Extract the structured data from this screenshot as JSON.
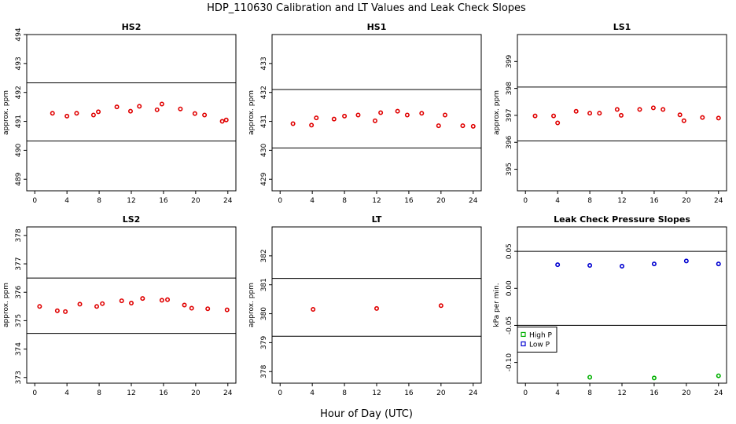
{
  "title": "HDP_110630  Calibration and LT Values and Leak Check Slopes",
  "xlabel": "Hour of Day (UTC)",
  "colors": {
    "red": "#e00000",
    "green": "#00b000",
    "blue": "#0000d0"
  },
  "chart_data": [
    {
      "type": "scatter",
      "title": "HS2",
      "ylabel": "approx. ppm",
      "xlim": [
        -1,
        25
      ],
      "ylim": [
        488.6,
        494
      ],
      "xticks": [
        0,
        4,
        8,
        12,
        16,
        20,
        24
      ],
      "yticks": [
        489,
        490,
        491,
        492,
        493,
        494
      ],
      "hlines": [
        490.32,
        492.33
      ],
      "series": [
        {
          "color": "red",
          "marker": "circle",
          "points": [
            [
              2.2,
              491.28
            ],
            [
              4,
              491.18
            ],
            [
              5.2,
              491.28
            ],
            [
              7.3,
              491.22
            ],
            [
              7.9,
              491.33
            ],
            [
              10.2,
              491.5
            ],
            [
              11.9,
              491.35
            ],
            [
              13,
              491.52
            ],
            [
              15.2,
              491.4
            ],
            [
              15.8,
              491.6
            ],
            [
              18.1,
              491.43
            ],
            [
              19.9,
              491.27
            ],
            [
              21.1,
              491.22
            ],
            [
              23.3,
              491
            ],
            [
              23.8,
              491.05
            ]
          ]
        }
      ]
    },
    {
      "type": "scatter",
      "title": "HS1",
      "ylabel": "approx. ppm",
      "xlim": [
        -1,
        25
      ],
      "ylim": [
        428.6,
        434
      ],
      "xticks": [
        0,
        4,
        8,
        12,
        16,
        20,
        24
      ],
      "yticks": [
        429,
        430,
        431,
        432,
        433
      ],
      "hlines": [
        430.08,
        432.1
      ],
      "series": [
        {
          "color": "red",
          "marker": "circle",
          "points": [
            [
              1.6,
              430.92
            ],
            [
              3.9,
              430.87
            ],
            [
              4.5,
              431.12
            ],
            [
              6.7,
              431.08
            ],
            [
              8,
              431.18
            ],
            [
              9.7,
              431.22
            ],
            [
              11.8,
              431.02
            ],
            [
              12.5,
              431.3
            ],
            [
              14.6,
              431.35
            ],
            [
              15.8,
              431.22
            ],
            [
              17.6,
              431.28
            ],
            [
              19.7,
              430.85
            ],
            [
              20.5,
              431.22
            ],
            [
              22.7,
              430.85
            ],
            [
              24,
              430.83
            ]
          ]
        }
      ]
    },
    {
      "type": "scatter",
      "title": "LS1",
      "ylabel": "approx. ppm",
      "xlim": [
        -1,
        25
      ],
      "ylim": [
        394.2,
        400
      ],
      "xticks": [
        0,
        4,
        8,
        12,
        16,
        20,
        24
      ],
      "yticks": [
        395,
        396,
        397,
        398,
        399
      ],
      "hlines": [
        396.05,
        398.05
      ],
      "series": [
        {
          "color": "red",
          "marker": "circle",
          "points": [
            [
              1.2,
              396.98
            ],
            [
              3.5,
              396.98
            ],
            [
              4,
              396.72
            ],
            [
              6.3,
              397.15
            ],
            [
              8,
              397.08
            ],
            [
              9.2,
              397.08
            ],
            [
              11.4,
              397.22
            ],
            [
              11.9,
              397.0
            ],
            [
              14.2,
              397.22
            ],
            [
              15.9,
              397.28
            ],
            [
              17.1,
              397.22
            ],
            [
              19.2,
              397.02
            ],
            [
              19.7,
              396.8
            ],
            [
              22,
              396.92
            ],
            [
              24,
              396.9
            ]
          ]
        }
      ]
    },
    {
      "type": "scatter",
      "title": "LS2",
      "ylabel": "approx. ppm",
      "xlim": [
        -1,
        25
      ],
      "ylim": [
        372.8,
        378.3
      ],
      "xticks": [
        0,
        4,
        8,
        12,
        16,
        20,
        24
      ],
      "yticks": [
        373,
        374,
        375,
        376,
        377,
        378
      ],
      "hlines": [
        374.55,
        376.5
      ],
      "series": [
        {
          "color": "red",
          "marker": "circle",
          "points": [
            [
              0.6,
              375.5
            ],
            [
              2.8,
              375.35
            ],
            [
              3.8,
              375.32
            ],
            [
              5.6,
              375.58
            ],
            [
              7.7,
              375.5
            ],
            [
              8.4,
              375.6
            ],
            [
              10.8,
              375.7
            ],
            [
              12,
              375.62
            ],
            [
              13.4,
              375.78
            ],
            [
              15.8,
              375.72
            ],
            [
              16.5,
              375.74
            ],
            [
              18.6,
              375.55
            ],
            [
              19.5,
              375.44
            ],
            [
              21.5,
              375.42
            ],
            [
              23.9,
              375.38
            ]
          ]
        }
      ]
    },
    {
      "type": "scatter",
      "title": "LT",
      "ylabel": "approx. ppm",
      "xlim": [
        -1,
        25
      ],
      "ylim": [
        377.6,
        383
      ],
      "xticks": [
        0,
        4,
        8,
        12,
        16,
        20,
        24
      ],
      "yticks": [
        378,
        379,
        380,
        381,
        382
      ],
      "hlines": [
        379.22,
        381.22
      ],
      "series": [
        {
          "color": "red",
          "marker": "circle",
          "points": [
            [
              4.1,
              380.15
            ],
            [
              12,
              380.18
            ],
            [
              20,
              380.28
            ]
          ]
        }
      ]
    },
    {
      "type": "scatter",
      "title": "Leak Check Pressure Slopes",
      "ylabel": "kPa per min.",
      "xlim": [
        -1,
        25
      ],
      "ylim": [
        -0.128,
        0.083
      ],
      "xticks": [
        0,
        4,
        8,
        12,
        16,
        20,
        24
      ],
      "yticks": [
        -0.1,
        -0.05,
        0.0,
        0.05
      ],
      "ytick_labels": [
        "-0.10",
        "-0.05",
        "0.00",
        "0.05"
      ],
      "hlines": [
        -0.05,
        0.05
      ],
      "legend": {
        "position": "left",
        "entries": [
          {
            "label": "High P",
            "color": "green"
          },
          {
            "label": "Low P",
            "color": "blue"
          }
        ]
      },
      "series": [
        {
          "name": "High P",
          "color": "green",
          "marker": "circle",
          "points": [
            [
              8,
              -0.12
            ],
            [
              16,
              -0.121
            ],
            [
              24,
              -0.118
            ]
          ]
        },
        {
          "name": "Low P",
          "color": "blue",
          "marker": "circle",
          "points": [
            [
              4,
              0.032
            ],
            [
              8,
              0.031
            ],
            [
              12,
              0.03
            ],
            [
              16,
              0.033
            ],
            [
              20,
              0.037
            ],
            [
              24,
              0.033
            ]
          ]
        }
      ]
    }
  ]
}
